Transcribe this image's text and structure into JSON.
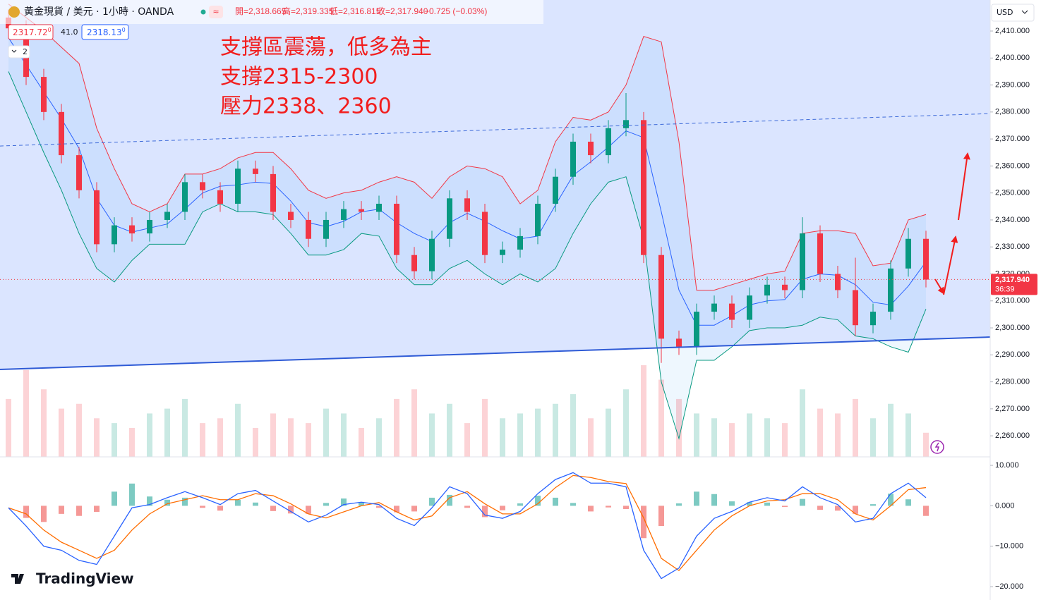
{
  "header": {
    "title": "黃金現貨 / 美元 · 1小時 · OANDA",
    "ohlc": [
      "開=2,318.665",
      "高=2,319.335",
      "低=2,316.815",
      "收=2,317.940",
      "−0.725 (−0.03%)"
    ],
    "bid": {
      "main": "2317.72",
      "sup": "0"
    },
    "spread": "41.0",
    "ask": {
      "main": "2318.13",
      "sup": "0"
    },
    "indicators": "2",
    "logo": "TradingView"
  },
  "chart_data": [
    {
      "type": "candlestick",
      "annotations": [
        "支撐區震蕩，低多為主",
        "支撐2315-2300",
        "壓力2338、2360"
      ],
      "currency": "USD",
      "open": [
        2415,
        2411,
        2393,
        2380,
        2364,
        2351,
        2331,
        2338,
        2335,
        2340,
        2343,
        2354,
        2351,
        2346,
        2359,
        2357,
        2343,
        2340,
        2333,
        2340,
        2344,
        2343,
        2346,
        2327,
        2321,
        2333,
        2348,
        2343,
        2327,
        2329,
        2334,
        2346,
        2356,
        2369,
        2364,
        2374,
        2377,
        2327,
        2296,
        2293,
        2306,
        2309,
        2303,
        2312,
        2316,
        2314,
        2335,
        2320,
        2314,
        2301,
        2306,
        2322,
        2333
      ],
      "high": [
        2418,
        2414,
        2396,
        2383,
        2367,
        2354,
        2341,
        2341,
        2343,
        2346,
        2357,
        2357,
        2354,
        2362,
        2362,
        2360,
        2346,
        2343,
        2343,
        2347,
        2347,
        2349,
        2349,
        2330,
        2336,
        2351,
        2351,
        2346,
        2332,
        2337,
        2349,
        2359,
        2372,
        2372,
        2377,
        2387,
        2380,
        2330,
        2299,
        2309,
        2312,
        2312,
        2315,
        2319,
        2319,
        2341,
        2338,
        2323,
        2326,
        2309,
        2325,
        2337,
        2336
      ],
      "low": [
        2408,
        2390,
        2377,
        2361,
        2348,
        2328,
        2328,
        2332,
        2332,
        2337,
        2340,
        2348,
        2343,
        2343,
        2354,
        2340,
        2337,
        2330,
        2330,
        2337,
        2340,
        2340,
        2324,
        2318,
        2318,
        2330,
        2340,
        2324,
        2324,
        2326,
        2331,
        2343,
        2353,
        2361,
        2361,
        2371,
        2324,
        2287,
        2290,
        2290,
        2303,
        2300,
        2300,
        2309,
        2311,
        2311,
        2317,
        2311,
        2297,
        2298,
        2303,
        2319,
        2315
      ],
      "close": [
        2411,
        2393,
        2380,
        2364,
        2351,
        2331,
        2338,
        2335,
        2340,
        2343,
        2354,
        2351,
        2346,
        2359,
        2357,
        2343,
        2340,
        2333,
        2340,
        2344,
        2343,
        2346,
        2327,
        2321,
        2333,
        2348,
        2343,
        2327,
        2329,
        2334,
        2346,
        2356,
        2369,
        2364,
        2374,
        2377,
        2327,
        2296,
        2293,
        2306,
        2309,
        2303,
        2312,
        2316,
        2314,
        2335,
        2320,
        2314,
        2301,
        2306,
        2322,
        2333,
        2317.9
      ],
      "color_up": "#089981",
      "color_down": "#f23645",
      "bands": {
        "upper": [
          2420,
          2415,
          2410,
          2404,
          2398,
          2374,
          2359,
          2346,
          2343,
          2346,
          2357,
          2357,
          2359,
          2363,
          2365,
          2365,
          2359,
          2351,
          2348,
          2350,
          2351,
          2354,
          2356,
          2354,
          2348,
          2356,
          2360,
          2359,
          2356,
          2346,
          2351,
          2369,
          2378,
          2377,
          2380,
          2390,
          2408,
          2406,
          2369,
          2314,
          2314,
          2316,
          2318,
          2320,
          2321,
          2335,
          2336,
          2336,
          2335,
          2323,
          2324,
          2340,
          2342
        ],
        "middle": [
          2407.5,
          2397.5,
          2387.5,
          2377.5,
          2366.5,
          2348,
          2338,
          2335.5,
          2337,
          2338.5,
          2344,
          2350,
          2352.5,
          2353,
          2354,
          2353.5,
          2347,
          2339,
          2337.5,
          2339.5,
          2343,
          2344,
          2339,
          2335,
          2332,
          2339,
          2342.5,
          2339.5,
          2336,
          2333,
          2334,
          2345.5,
          2356.5,
          2361.5,
          2367,
          2373,
          2370.5,
          2343,
          2314,
          2301,
          2301,
          2304.5,
          2308.5,
          2310,
          2310.5,
          2318,
          2320,
          2319.5,
          2316,
          2309.5,
          2308.5,
          2315.5,
          2324.5
        ],
        "lower": [
          2395,
          2380,
          2365,
          2351,
          2335,
          2322,
          2317,
          2325,
          2331,
          2331,
          2331,
          2343,
          2346,
          2343,
          2343,
          2342,
          2335,
          2327,
          2327,
          2329,
          2335,
          2334,
          2322,
          2316,
          2316,
          2322,
          2325,
          2320,
          2316,
          2320,
          2317,
          2322,
          2335,
          2346,
          2354,
          2356,
          2333,
          2280,
          2259,
          2288,
          2288,
          2293,
          2299,
          2300,
          2300,
          2301,
          2304,
          2303,
          2297,
          2296,
          2293,
          2291,
          2307
        ],
        "upper_color": "#f23645",
        "middle_color": "#2962ff",
        "lower_color": "#089981"
      },
      "volume": [
        60,
        90,
        70,
        50,
        55,
        40,
        35,
        30,
        45,
        50,
        60,
        35,
        40,
        55,
        30,
        45,
        40,
        35,
        50,
        45,
        30,
        40,
        60,
        70,
        45,
        55,
        35,
        60,
        40,
        45,
        50,
        55,
        65,
        40,
        50,
        70,
        95,
        80,
        60,
        45,
        40,
        35,
        45,
        40,
        35,
        70,
        50,
        45,
        60,
        40,
        55,
        45,
        25
      ],
      "trendlines": [
        {
          "values": [
            2284.6,
            2296.6
          ],
          "style": "solid",
          "color": "#2f5bd6"
        },
        {
          "values": [
            2367.4,
            2379.4
          ],
          "style": "dashed",
          "color": "#3d6ad9"
        }
      ],
      "last_price": {
        "value": 2317.94,
        "label": "2,317.940",
        "countdown": "36:39"
      },
      "ylim": [
        2252.2,
        2421.5
      ],
      "yticks": [
        {
          "value": 2260,
          "label": "2,260.000"
        },
        {
          "value": 2270,
          "label": "2,270.000"
        },
        {
          "value": 2280,
          "label": "2,280.000"
        },
        {
          "value": 2290,
          "label": "2,290.000"
        },
        {
          "value": 2300,
          "label": "2,300.000"
        },
        {
          "value": 2310,
          "label": "2,310.000"
        },
        {
          "value": 2320,
          "label": "2,320.000"
        },
        {
          "value": 2330,
          "label": "2,330.000"
        },
        {
          "value": 2340,
          "label": "2,340.000"
        },
        {
          "value": 2350,
          "label": "2,350.000"
        },
        {
          "value": 2360,
          "label": "2,360.000"
        },
        {
          "value": 2370,
          "label": "2,370.000"
        },
        {
          "value": 2380,
          "label": "2,380.000"
        },
        {
          "value": 2390,
          "label": "2,390.000"
        },
        {
          "value": 2400,
          "label": "2,400.000"
        },
        {
          "value": 2410,
          "label": "2,410.000"
        }
      ]
    },
    {
      "type": "macd",
      "macd": {
        "values": [
          -0.5,
          -5,
          -10,
          -11,
          -13.5,
          -14.5,
          -7.5,
          -0.5,
          0.3,
          2,
          3.5,
          2,
          0.3,
          3,
          3.8,
          1.2,
          -1.4,
          -4,
          -2.3,
          0.3,
          0.9,
          0.3,
          -3.1,
          -4.9,
          -0.5,
          4.7,
          3,
          -2.3,
          -3.1,
          -1.4,
          3,
          6.5,
          8.2,
          5.6,
          5.6,
          4.7,
          -11,
          -18,
          -15.4,
          -7.5,
          -3.1,
          -1.4,
          0.9,
          2,
          1.2,
          4.7,
          2,
          0.3,
          -4,
          -3.1,
          3,
          5.6,
          2
        ],
        "color": "#2962ff"
      },
      "signal": {
        "values": [
          -0.5,
          -2,
          -6,
          -9,
          -11,
          -13,
          -11,
          -6,
          -2,
          0.5,
          1.5,
          2.5,
          1.5,
          1.5,
          3,
          2.5,
          0.5,
          -2,
          -3,
          -1.5,
          0,
          0.8,
          -1.5,
          -3.5,
          -2.5,
          2,
          3.5,
          0.5,
          -2,
          -2,
          0.5,
          4.5,
          7.5,
          7,
          6,
          5.5,
          -3,
          -13,
          -16,
          -11,
          -6,
          -2.5,
          0,
          1.2,
          1.5,
          3,
          3,
          1.5,
          -2,
          -3.5,
          0,
          4,
          4.5
        ],
        "color": "#ff6d00"
      },
      "histogram": {
        "values": [
          0,
          -3,
          -4,
          -2,
          -2.5,
          -1.5,
          3.5,
          5.5,
          2.3,
          1.5,
          2,
          -0.5,
          -1.2,
          1.5,
          0.8,
          -1.3,
          -1.9,
          -2,
          0.7,
          1.8,
          0.9,
          -0.5,
          -1.6,
          -1.4,
          2,
          2.7,
          -0.5,
          -2.8,
          -1.1,
          0.6,
          2.5,
          2,
          0.7,
          -1.4,
          -0.4,
          -0.8,
          -8,
          -5,
          0.6,
          3.5,
          2.9,
          1.1,
          0.9,
          0.8,
          -0.3,
          1.7,
          -1,
          -1.2,
          -2,
          0.4,
          3,
          1.6,
          -2.5
        ],
        "positive_color": "#26a69a",
        "negative_color": "#ef5350"
      },
      "ylim": [
        -23.3,
        12.1
      ],
      "yticks": [
        {
          "value": 10,
          "label": "10.000"
        },
        {
          "value": 0,
          "label": "0.000"
        },
        {
          "value": -10,
          "label": "−10.000"
        },
        {
          "value": -20,
          "label": "−20.000"
        }
      ]
    }
  ]
}
